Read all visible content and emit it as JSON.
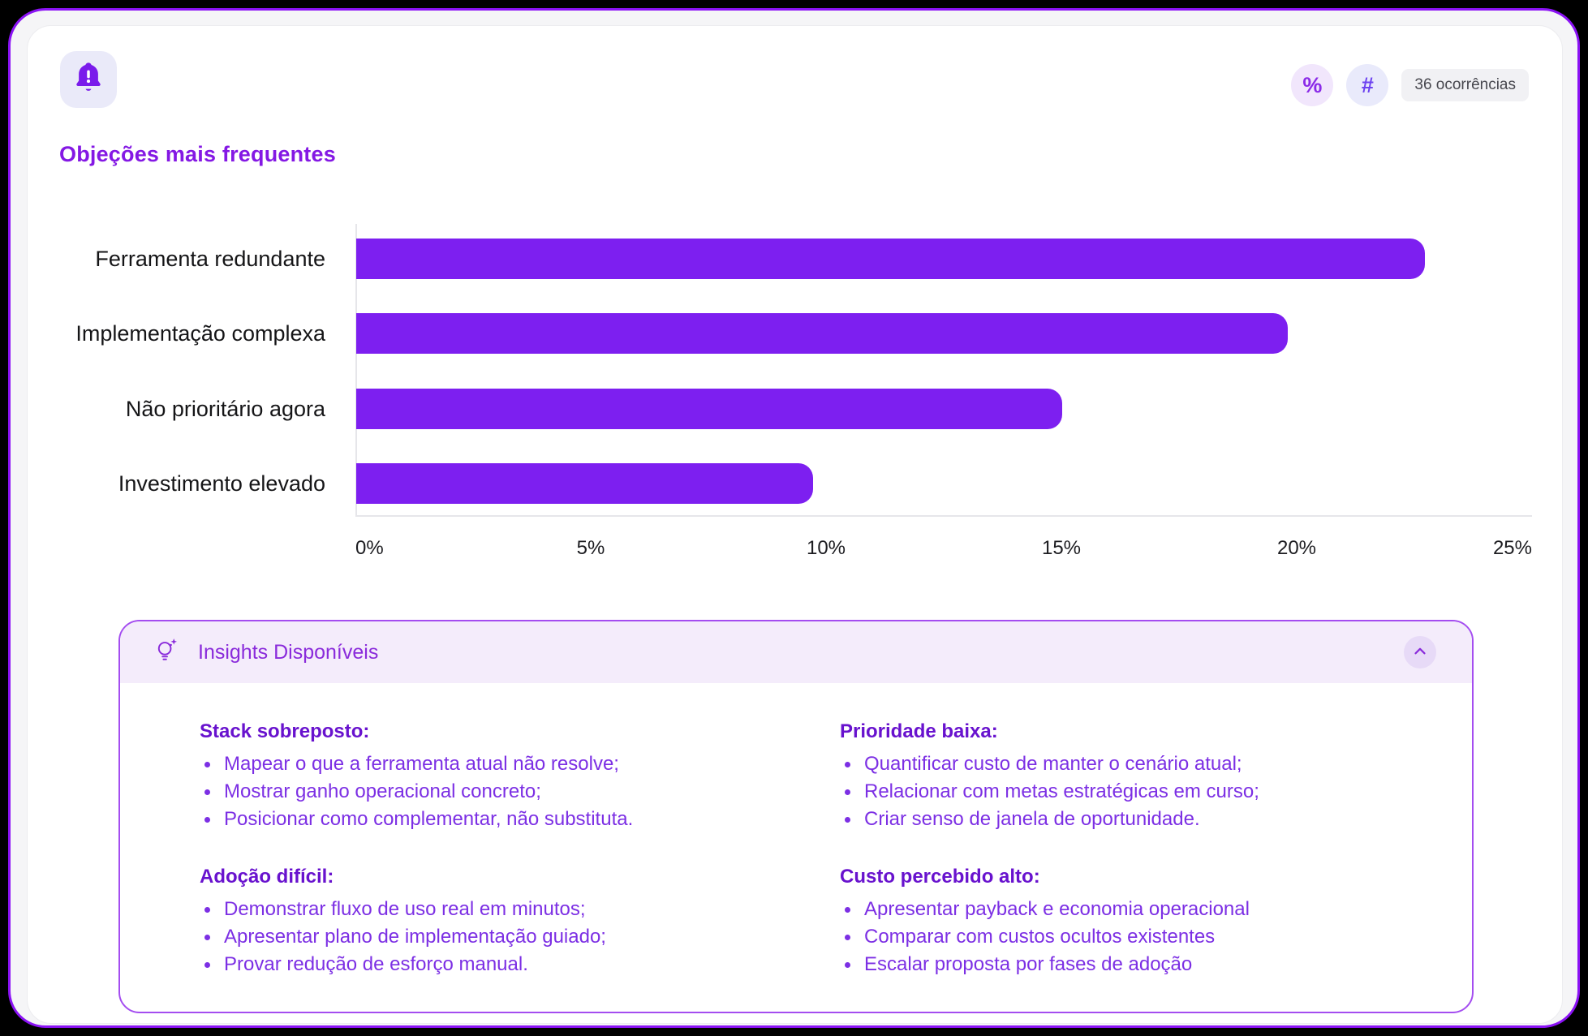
{
  "header": {
    "bell_icon": "bell-alert-icon",
    "percent_label": "%",
    "hash_label": "#",
    "occurrences_label": "36 ocorrências"
  },
  "title": "Objeções mais frequentes",
  "chart_data": {
    "type": "bar",
    "orientation": "horizontal",
    "title": "Objeções mais frequentes",
    "categories": [
      "Ferramenta redundante",
      "Implementação complexa",
      "Não prioritário agora",
      "Investimento elevado"
    ],
    "values": [
      22.7,
      19.8,
      15,
      9.7
    ],
    "unit": "%",
    "xlim": [
      0,
      25
    ],
    "x_ticks": [
      "0%",
      "5%",
      "10%",
      "15%",
      "20%",
      "25%"
    ],
    "bar_color": "#7D1FF0",
    "grid": false,
    "legend": false
  },
  "insights": {
    "title": "Insights Disponíveis",
    "lightbulb_icon": "lightbulb-sparkle-icon",
    "collapse_icon": "chevron-up-icon",
    "columns": [
      {
        "blocks": [
          {
            "heading": "Stack sobreposto:",
            "bullets": [
              "Mapear o que a ferramenta atual não resolve;",
              "Mostrar ganho operacional concreto;",
              "Posicionar como complementar, não substituta."
            ]
          },
          {
            "heading": "Adoção difícil:",
            "bullets": [
              "Demonstrar fluxo de uso real em minutos;",
              "Apresentar plano de implementação guiado;",
              "Provar redução de esforço manual."
            ]
          }
        ]
      },
      {
        "blocks": [
          {
            "heading": "Prioridade baixa:",
            "bullets": [
              "Quantificar custo de manter o cenário atual;",
              "Relacionar com metas estratégicas em curso;",
              "Criar senso de janela de oportunidade."
            ]
          },
          {
            "heading": "Custo percebido alto:",
            "bullets": [
              "Apresentar payback e economia operacional",
              "Comparar com custos ocultos existentes",
              "Escalar proposta por fases de adoção"
            ]
          }
        ]
      }
    ]
  },
  "colors": {
    "accent": "#7D1FF0",
    "frame_border": "#8B12F5",
    "title_text": "#8418E4",
    "insights_border": "#A44DF0",
    "insights_header_bg": "#F4ECFB",
    "insights_text": "#7C2FE4",
    "insights_heading": "#6812CE",
    "badge_bg": "#F1F1F4",
    "axis_line": "#E6E6EA"
  }
}
